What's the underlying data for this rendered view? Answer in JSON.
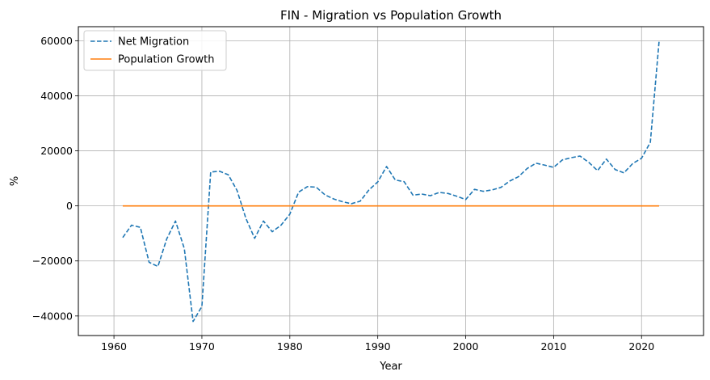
{
  "chart_data": {
    "type": "line",
    "title": "FIN - Migration vs Population Growth",
    "xlabel": "Year",
    "ylabel": "%",
    "xlim": [
      1955.95,
      2027.05
    ],
    "ylim": [
      -47100,
      65100
    ],
    "xticks": [
      1960,
      1970,
      1980,
      1990,
      2000,
      2010,
      2020
    ],
    "yticks": [
      -40000,
      -20000,
      0,
      20000,
      40000,
      60000
    ],
    "grid": true,
    "legend_position": "top-left",
    "x": [
      1961,
      1962,
      1963,
      1964,
      1965,
      1966,
      1967,
      1968,
      1969,
      1970,
      1971,
      1972,
      1973,
      1974,
      1975,
      1976,
      1977,
      1978,
      1979,
      1980,
      1981,
      1982,
      1983,
      1984,
      1985,
      1986,
      1987,
      1988,
      1989,
      1990,
      1991,
      1992,
      1993,
      1994,
      1995,
      1996,
      1997,
      1998,
      1999,
      2000,
      2001,
      2002,
      2003,
      2004,
      2005,
      2006,
      2007,
      2008,
      2009,
      2010,
      2011,
      2012,
      2013,
      2014,
      2015,
      2016,
      2017,
      2018,
      2019,
      2020,
      2021,
      2022
    ],
    "series": [
      {
        "name": "Net Migration",
        "color": "#1f77b4",
        "style": "dashed",
        "values": [
          -11500,
          -7000,
          -7800,
          -20500,
          -22000,
          -12000,
          -5500,
          -15500,
          -42000,
          -36500,
          12300,
          12600,
          11300,
          5600,
          -4500,
          -11800,
          -5500,
          -9400,
          -7000,
          -3000,
          5000,
          7000,
          6800,
          4000,
          2500,
          1500,
          800,
          1700,
          5800,
          8700,
          14300,
          9400,
          8800,
          3900,
          4300,
          3700,
          4900,
          4500,
          3500,
          2300,
          6000,
          5300,
          5800,
          6700,
          9000,
          10600,
          13600,
          15500,
          14800,
          14000,
          16700,
          17500,
          18100,
          15800,
          12800,
          17000,
          13200,
          12000,
          15400,
          17300,
          23100,
          60000
        ]
      },
      {
        "name": "Population Growth",
        "color": "#ff7f0e",
        "style": "solid",
        "values": [
          0.5,
          0.5,
          0.4,
          0.1,
          0.0,
          0.4,
          0.6,
          0.2,
          -0.3,
          -0.4,
          0.1,
          0.4,
          0.5,
          0.5,
          0.4,
          0.3,
          0.3,
          0.2,
          0.2,
          0.3,
          0.4,
          0.5,
          0.6,
          0.5,
          0.4,
          0.3,
          0.3,
          0.3,
          0.4,
          0.4,
          0.5,
          0.5,
          0.4,
          0.4,
          0.3,
          0.3,
          0.3,
          0.2,
          0.2,
          0.2,
          0.2,
          0.2,
          0.2,
          0.3,
          0.3,
          0.4,
          0.4,
          0.5,
          0.4,
          0.4,
          0.5,
          0.5,
          0.4,
          0.4,
          0.3,
          0.3,
          0.1,
          0.1,
          0.1,
          0.1,
          0.3,
          0.4
        ]
      }
    ]
  }
}
